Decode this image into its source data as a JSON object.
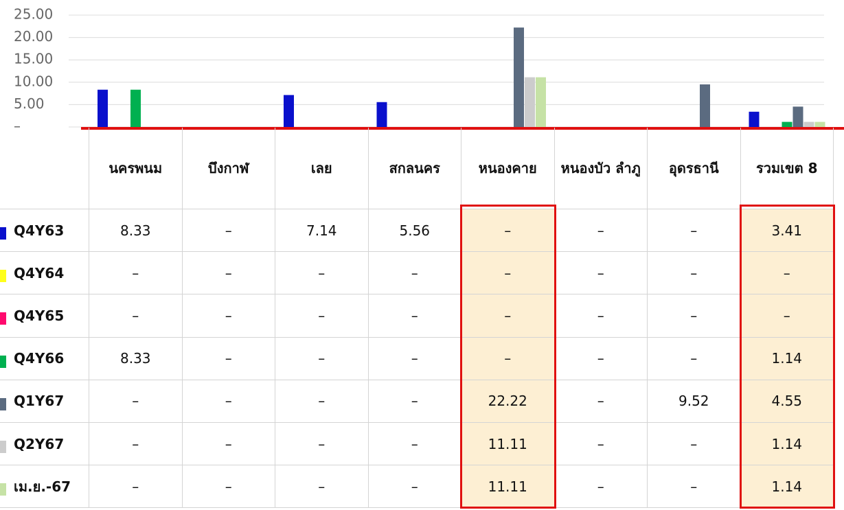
{
  "chart_data": {
    "type": "bar",
    "categories": [
      "นครพนม",
      "บึงกาฬ",
      "เลย",
      "สกลนคร",
      "หนองคาย",
      "หนองบัว ลำภู",
      "อุดรธานี",
      "รวมเขต 8"
    ],
    "ylim": [
      0,
      25
    ],
    "yticks": [
      {
        "value": 0,
        "label": "–"
      },
      {
        "value": 5,
        "label": "5.00"
      },
      {
        "value": 10,
        "label": "10.00"
      },
      {
        "value": 15,
        "label": "15.00"
      },
      {
        "value": 20,
        "label": "20.00"
      },
      {
        "value": 25,
        "label": "25.00"
      }
    ],
    "grid": true,
    "series": [
      {
        "name": "Q4Y63",
        "color": "#0a10cc",
        "values": [
          8.33,
          null,
          7.14,
          5.56,
          null,
          null,
          null,
          3.41
        ],
        "value_labels": [
          "8.33",
          "–",
          "7.14",
          "5.56",
          "–",
          "–",
          "–",
          "3.41"
        ]
      },
      {
        "name": "Q4Y64",
        "color": "#ffff1a",
        "values": [
          null,
          null,
          null,
          null,
          null,
          null,
          null,
          null
        ],
        "value_labels": [
          "–",
          "–",
          "–",
          "–",
          "–",
          "–",
          "–",
          "–"
        ]
      },
      {
        "name": "Q4Y65",
        "color": "#ff0a6e",
        "values": [
          null,
          null,
          null,
          null,
          null,
          null,
          null,
          null
        ],
        "value_labels": [
          "–",
          "–",
          "–",
          "–",
          "–",
          "–",
          "–",
          "–"
        ]
      },
      {
        "name": "Q4Y66",
        "color": "#00b050",
        "values": [
          8.33,
          null,
          null,
          null,
          null,
          null,
          null,
          1.14
        ],
        "value_labels": [
          "8.33",
          "–",
          "–",
          "–",
          "–",
          "–",
          "–",
          "1.14"
        ]
      },
      {
        "name": "Q1Y67",
        "color": "#5b6b80",
        "values": [
          null,
          null,
          null,
          null,
          22.22,
          null,
          9.52,
          4.55
        ],
        "value_labels": [
          "–",
          "–",
          "–",
          "–",
          "22.22",
          "–",
          "9.52",
          "4.55"
        ]
      },
      {
        "name": "Q2Y67",
        "color": "#cccccc",
        "values": [
          null,
          null,
          null,
          null,
          11.11,
          null,
          null,
          1.14
        ],
        "value_labels": [
          "–",
          "–",
          "–",
          "–",
          "11.11",
          "–",
          "–",
          "1.14"
        ]
      },
      {
        "name": "เม.ย.-67",
        "color": "#c6e2a6",
        "values": [
          null,
          null,
          null,
          null,
          11.11,
          null,
          null,
          1.14
        ],
        "value_labels": [
          "–",
          "–",
          "–",
          "–",
          "11.11",
          "–",
          "–",
          "1.14"
        ]
      }
    ],
    "highlight_categories": [
      4,
      7
    ],
    "highlight_color": "#fdefd3"
  }
}
